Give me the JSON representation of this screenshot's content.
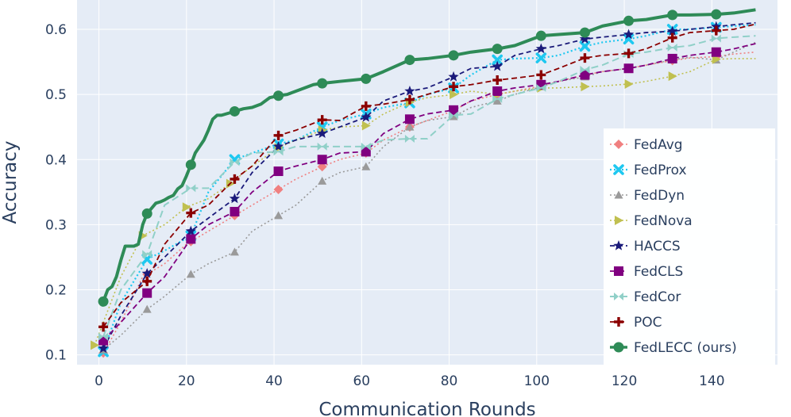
{
  "chart_data": {
    "type": "line",
    "title": "",
    "xlabel": "Communication Rounds",
    "ylabel": "Accuracy",
    "xlim": [
      -5,
      155
    ],
    "ylim": [
      0.085,
      0.645
    ],
    "xticks": [
      0,
      20,
      40,
      60,
      80,
      100,
      120,
      140
    ],
    "yticks": [
      0.1,
      0.2,
      0.3,
      0.4,
      0.5,
      0.6
    ],
    "xtick_labels": [
      "0",
      "20",
      "40",
      "60",
      "80",
      "100",
      "120",
      "140"
    ],
    "ytick_labels": [
      "0.1",
      "0.2",
      "0.3",
      "0.4",
      "0.5",
      "0.6"
    ],
    "grid": true,
    "legend_position": "bottom-right",
    "background_color": "#e5ecf6",
    "grid_color": "#ffffff",
    "series": [
      {
        "name": "FedAvg",
        "color": "#f08080",
        "dash": "2,3",
        "width": 1.6,
        "marker": "diamond",
        "x": [
          1,
          5,
          10,
          15,
          20,
          25,
          30,
          35,
          41,
          45,
          51,
          55,
          61,
          65,
          71,
          75,
          81,
          85,
          91,
          95,
          101,
          105,
          111,
          115,
          121,
          125,
          131,
          135,
          141,
          145,
          150
        ],
        "y": [
          0.103,
          0.15,
          0.22,
          0.24,
          0.27,
          0.29,
          0.31,
          0.33,
          0.354,
          0.37,
          0.389,
          0.4,
          0.41,
          0.43,
          0.45,
          0.46,
          0.475,
          0.49,
          0.5,
          0.505,
          0.513,
          0.52,
          0.53,
          0.535,
          0.54,
          0.545,
          0.552,
          0.556,
          0.558,
          0.562,
          0.565
        ],
        "marker_x": [
          1,
          11,
          21,
          31,
          41,
          51,
          61,
          71,
          81,
          91,
          101,
          111,
          121,
          131,
          141
        ]
      },
      {
        "name": "FedProx",
        "color": "#1ec8f0",
        "dash": "2,3",
        "width": 2.2,
        "marker": "x",
        "x": [
          1,
          5,
          11,
          15,
          21,
          25,
          31,
          35,
          41,
          45,
          51,
          55,
          61,
          65,
          71,
          75,
          81,
          85,
          91,
          95,
          101,
          105,
          111,
          115,
          121,
          125,
          131,
          135,
          141,
          145,
          150
        ],
        "y": [
          0.105,
          0.18,
          0.247,
          0.26,
          0.283,
          0.35,
          0.4,
          0.41,
          0.424,
          0.43,
          0.45,
          0.46,
          0.47,
          0.48,
          0.487,
          0.5,
          0.51,
          0.53,
          0.553,
          0.555,
          0.556,
          0.56,
          0.574,
          0.58,
          0.585,
          0.59,
          0.6,
          0.6,
          0.603,
          0.605,
          0.607
        ],
        "marker_x": [
          1,
          11,
          21,
          31,
          41,
          51,
          61,
          71,
          81,
          91,
          101,
          111,
          121,
          131,
          141
        ]
      },
      {
        "name": "FedDyn",
        "color": "#9a9a9a",
        "dash": "2,3",
        "width": 1.6,
        "marker": "triangle-up",
        "x": [
          1,
          5,
          11,
          15,
          21,
          25,
          31,
          35,
          41,
          45,
          51,
          55,
          61,
          65,
          71,
          75,
          81,
          85,
          91,
          95,
          101,
          105,
          111,
          115,
          121,
          125,
          131,
          135,
          141,
          145,
          150
        ],
        "y": [
          0.108,
          0.13,
          0.17,
          0.19,
          0.224,
          0.24,
          0.258,
          0.29,
          0.314,
          0.33,
          0.367,
          0.38,
          0.389,
          0.42,
          0.45,
          0.46,
          0.466,
          0.48,
          0.49,
          0.5,
          0.512,
          0.52,
          0.527,
          0.535,
          0.54,
          0.545,
          0.553,
          0.557,
          0.553,
          0.565,
          0.58
        ],
        "marker_x": [
          1,
          11,
          21,
          31,
          41,
          51,
          61,
          71,
          81,
          91,
          101,
          111,
          121,
          131,
          141
        ]
      },
      {
        "name": "FedNova",
        "color": "#c0c050",
        "dash": "2,3",
        "width": 1.6,
        "marker": "triangle-right",
        "x": [
          -1,
          5,
          10,
          15,
          20,
          25,
          30,
          35,
          41,
          45,
          51,
          55,
          61,
          65,
          71,
          75,
          81,
          85,
          91,
          95,
          101,
          105,
          111,
          115,
          121,
          125,
          131,
          135,
          141,
          145,
          150
        ],
        "y": [
          0.115,
          0.22,
          0.283,
          0.3,
          0.327,
          0.34,
          0.363,
          0.39,
          0.418,
          0.43,
          0.445,
          0.45,
          0.452,
          0.47,
          0.488,
          0.495,
          0.5,
          0.505,
          0.5,
          0.505,
          0.51,
          0.51,
          0.512,
          0.513,
          0.516,
          0.52,
          0.528,
          0.535,
          0.554,
          0.555,
          0.555
        ],
        "marker_x": [
          -1,
          10,
          20,
          30,
          41,
          51,
          61,
          71,
          81,
          91,
          101,
          111,
          121,
          131,
          141
        ]
      },
      {
        "name": "HACCS",
        "color": "#1a1a7a",
        "dash": "6,4",
        "width": 1.8,
        "marker": "star",
        "x": [
          1,
          5,
          11,
          15,
          21,
          25,
          31,
          35,
          41,
          45,
          51,
          55,
          61,
          65,
          71,
          75,
          81,
          85,
          91,
          95,
          101,
          105,
          111,
          115,
          121,
          125,
          131,
          135,
          141,
          145,
          150
        ],
        "y": [
          0.11,
          0.16,
          0.225,
          0.25,
          0.29,
          0.31,
          0.34,
          0.38,
          0.42,
          0.43,
          0.44,
          0.45,
          0.465,
          0.49,
          0.505,
          0.51,
          0.527,
          0.54,
          0.543,
          0.56,
          0.57,
          0.575,
          0.585,
          0.588,
          0.592,
          0.595,
          0.597,
          0.6,
          0.604,
          0.607,
          0.61
        ],
        "marker_x": [
          1,
          11,
          21,
          31,
          41,
          51,
          61,
          71,
          81,
          91,
          101,
          111,
          121,
          131,
          141
        ]
      },
      {
        "name": "FedCLS",
        "color": "#800080",
        "dash": "7,4",
        "width": 1.8,
        "marker": "square",
        "x": [
          1,
          5,
          11,
          15,
          21,
          25,
          31,
          35,
          41,
          45,
          51,
          55,
          61,
          65,
          71,
          75,
          81,
          85,
          91,
          95,
          101,
          105,
          111,
          115,
          121,
          125,
          131,
          135,
          141,
          145,
          150
        ],
        "y": [
          0.122,
          0.15,
          0.195,
          0.22,
          0.278,
          0.3,
          0.32,
          0.35,
          0.382,
          0.39,
          0.4,
          0.41,
          0.412,
          0.44,
          0.462,
          0.47,
          0.476,
          0.49,
          0.505,
          0.51,
          0.515,
          0.52,
          0.53,
          0.535,
          0.54,
          0.545,
          0.555,
          0.56,
          0.565,
          0.57,
          0.578
        ],
        "marker_x": [
          1,
          11,
          21,
          31,
          41,
          51,
          61,
          71,
          81,
          91,
          101,
          111,
          121,
          131,
          141
        ]
      },
      {
        "name": "FedCor",
        "color": "#90d0c8",
        "dash": "9,5",
        "width": 2,
        "marker": "bowtie",
        "x": [
          1,
          5,
          11,
          15,
          21,
          25,
          31,
          35,
          41,
          45,
          51,
          55,
          61,
          65,
          71,
          75,
          81,
          85,
          91,
          95,
          101,
          105,
          111,
          115,
          121,
          125,
          131,
          135,
          141,
          145,
          150
        ],
        "y": [
          0.128,
          0.2,
          0.255,
          0.33,
          0.356,
          0.356,
          0.396,
          0.41,
          0.412,
          0.42,
          0.42,
          0.42,
          0.42,
          0.43,
          0.432,
          0.432,
          0.468,
          0.47,
          0.493,
          0.5,
          0.51,
          0.52,
          0.538,
          0.545,
          0.562,
          0.565,
          0.572,
          0.575,
          0.586,
          0.588,
          0.59
        ],
        "marker_x": [
          1,
          11,
          21,
          31,
          41,
          51,
          61,
          71,
          81,
          91,
          101,
          111,
          121,
          131,
          141
        ]
      },
      {
        "name": "POC",
        "color": "#8b0000",
        "dash": "7,4",
        "width": 1.8,
        "marker": "cross",
        "x": [
          1,
          5,
          11,
          15,
          21,
          25,
          31,
          35,
          41,
          45,
          51,
          55,
          61,
          65,
          71,
          75,
          81,
          85,
          91,
          95,
          101,
          105,
          111,
          115,
          121,
          125,
          131,
          135,
          141,
          145,
          150
        ],
        "y": [
          0.143,
          0.18,
          0.213,
          0.27,
          0.318,
          0.33,
          0.37,
          0.39,
          0.437,
          0.445,
          0.461,
          0.46,
          0.482,
          0.485,
          0.492,
          0.5,
          0.512,
          0.515,
          0.522,
          0.525,
          0.53,
          0.54,
          0.556,
          0.56,
          0.563,
          0.57,
          0.587,
          0.595,
          0.598,
          0.6,
          0.608
        ],
        "marker_x": [
          1,
          11,
          21,
          31,
          41,
          51,
          61,
          71,
          81,
          91,
          101,
          111,
          121,
          131,
          141
        ]
      },
      {
        "name": "FedLECC (ours)",
        "color": "#2e8b57",
        "dash": "",
        "width": 4,
        "marker": "circle",
        "x": [
          1,
          2,
          3,
          4,
          5,
          6,
          7,
          8,
          9,
          10,
          11,
          12,
          13,
          14,
          15,
          16,
          17,
          18,
          19,
          20,
          21,
          22,
          23,
          24,
          25,
          26,
          27,
          28,
          29,
          30,
          31,
          33,
          35,
          37,
          39,
          41,
          43,
          45,
          47,
          49,
          51,
          55,
          61,
          65,
          71,
          75,
          81,
          85,
          91,
          95,
          101,
          105,
          111,
          115,
          121,
          125,
          131,
          135,
          141,
          145,
          150
        ],
        "y": [
          0.182,
          0.2,
          0.205,
          0.22,
          0.245,
          0.267,
          0.267,
          0.267,
          0.27,
          0.3,
          0.317,
          0.325,
          0.333,
          0.335,
          0.338,
          0.342,
          0.345,
          0.355,
          0.36,
          0.375,
          0.392,
          0.41,
          0.42,
          0.43,
          0.445,
          0.462,
          0.468,
          0.468,
          0.47,
          0.472,
          0.474,
          0.478,
          0.48,
          0.485,
          0.495,
          0.498,
          0.5,
          0.505,
          0.51,
          0.515,
          0.517,
          0.52,
          0.524,
          0.535,
          0.553,
          0.555,
          0.56,
          0.565,
          0.57,
          0.575,
          0.59,
          0.592,
          0.595,
          0.605,
          0.613,
          0.615,
          0.622,
          0.622,
          0.623,
          0.625,
          0.63
        ],
        "marker_x": [
          1,
          11,
          21,
          31,
          41,
          51,
          61,
          71,
          81,
          91,
          101,
          111,
          121,
          131,
          141
        ]
      }
    ]
  }
}
